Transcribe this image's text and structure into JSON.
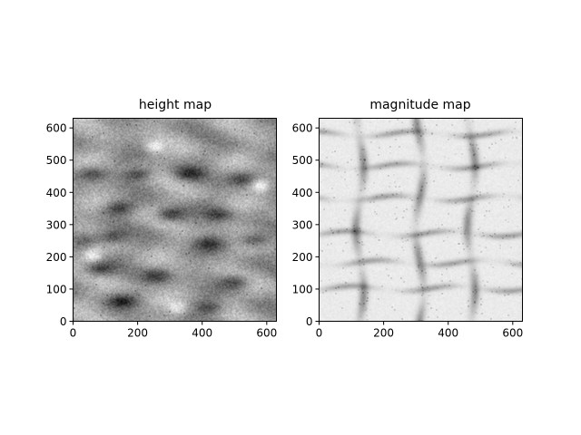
{
  "chart_data": [
    {
      "type": "heatmap",
      "title": "height map",
      "colormap": "grayscale",
      "xlim": [
        0,
        630
      ],
      "ylim": [
        0,
        630
      ],
      "xticks": [
        0,
        200,
        400,
        600
      ],
      "yticks": [
        0,
        100,
        200,
        300,
        400,
        500,
        600
      ],
      "xtick_labels": [
        "0",
        "200",
        "400",
        "600"
      ],
      "ytick_labels": [
        "0",
        "100",
        "200",
        "300",
        "400",
        "500",
        "600"
      ],
      "grid": false,
      "texture": {
        "base": 0.62,
        "noise": 0.22,
        "dark_spots": [
          [
            55,
            455,
            0.18
          ],
          [
            200,
            455,
            0.2
          ],
          [
            360,
            455,
            0.2
          ],
          [
            520,
            440,
            0.2
          ],
          [
            140,
            350,
            0.2
          ],
          [
            300,
            330,
            0.22
          ],
          [
            450,
            330,
            0.2
          ],
          [
            120,
            260,
            0.2
          ],
          [
            420,
            240,
            0.2
          ],
          [
            560,
            250,
            0.2
          ],
          [
            80,
            160,
            0.2
          ],
          [
            260,
            140,
            0.2
          ],
          [
            500,
            120,
            0.2
          ],
          [
            150,
            60,
            0.2
          ],
          [
            420,
            40,
            0.2
          ],
          [
            40,
            250,
            0.15
          ]
        ],
        "bright_spots": [
          [
            250,
            540,
            0.22
          ],
          [
            580,
            420,
            0.25
          ],
          [
            60,
            200,
            0.22
          ],
          [
            320,
            40,
            0.2
          ]
        ]
      }
    },
    {
      "type": "heatmap",
      "title": "magnitude map",
      "colormap": "grayscale",
      "xlim": [
        0,
        630
      ],
      "ylim": [
        0,
        630
      ],
      "xticks": [
        0,
        200,
        400,
        600
      ],
      "yticks": [
        0,
        100,
        200,
        300,
        400,
        500,
        600
      ],
      "xtick_labels": [
        "0",
        "200",
        "400",
        "600"
      ],
      "ytick_labels": [
        "0",
        "100",
        "200",
        "300",
        "400",
        "500",
        "600"
      ],
      "grid": false,
      "texture": {
        "base": 0.92,
        "noise": 0.06,
        "vertical_bands": [
          125,
          310,
          470
        ],
        "horizontal_bands": [
          100,
          180,
          270,
          380,
          480,
          580
        ],
        "band_darkness": 0.35,
        "speckle": 0.1
      }
    }
  ]
}
